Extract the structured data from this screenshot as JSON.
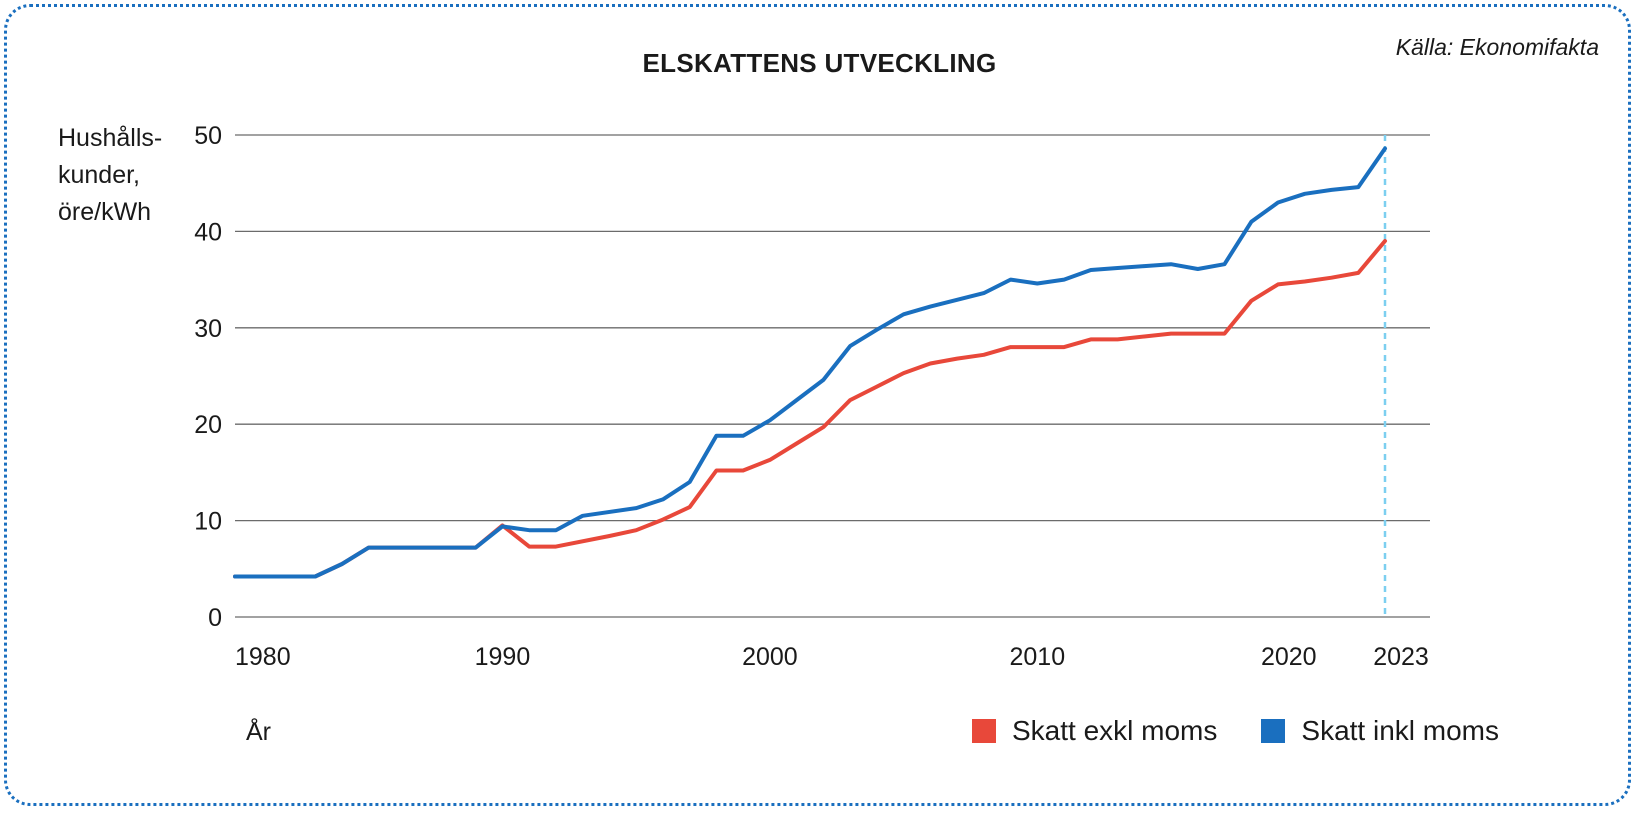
{
  "chart_data": {
    "type": "line",
    "title": "ELSKATTENS UTVECKLING",
    "source": "Källa: Ekonomifakta",
    "ylabel_lines": [
      "Hushålls-",
      "kunder,",
      "öre/kWh"
    ],
    "xlabel": "År",
    "ylim": [
      0,
      50
    ],
    "xlim": [
      1980,
      2023.5
    ],
    "yticks": [
      0,
      10,
      20,
      30,
      40,
      50
    ],
    "xticks": [
      1980,
      1990,
      2000,
      2010,
      2020,
      2023
    ],
    "grid": true,
    "legend_position": "bottom-right",
    "reference_line_x": 2023,
    "series": [
      {
        "name": "Skatt exkl moms",
        "color": "#e8483a",
        "x": [
          1980,
          1983,
          1984,
          1985,
          1988,
          1989,
          1990,
          1991,
          1992,
          1994,
          1995,
          1996,
          1997,
          1998,
          1999,
          2000,
          2001,
          2002,
          2003,
          2004,
          2005,
          2006,
          2007,
          2008,
          2009,
          2010,
          2011,
          2012,
          2013,
          2014,
          2015,
          2016,
          2017,
          2018,
          2019,
          2020,
          2021,
          2022,
          2023
        ],
        "y": [
          4.2,
          4.2,
          5.5,
          7.2,
          7.2,
          7.2,
          9.5,
          7.3,
          7.3,
          8.4,
          9.0,
          10.1,
          11.4,
          15.2,
          15.2,
          16.3,
          18.0,
          19.7,
          22.5,
          23.9,
          25.3,
          26.3,
          26.8,
          27.2,
          28.0,
          28.0,
          28.0,
          28.8,
          28.8,
          29.1,
          29.4,
          29.4,
          29.4,
          32.8,
          34.5,
          34.8,
          35.2,
          35.7,
          39.0
        ]
      },
      {
        "name": "Skatt inkl moms",
        "color": "#1a6fbf",
        "x": [
          1980,
          1983,
          1984,
          1985,
          1988,
          1989,
          1990,
          1991,
          1992,
          1993,
          1995,
          1996,
          1997,
          1998,
          1999,
          2000,
          2001,
          2002,
          2003,
          2004,
          2005,
          2006,
          2007,
          2008,
          2009,
          2010,
          2011,
          2012,
          2013,
          2014,
          2015,
          2016,
          2017,
          2018,
          2019,
          2020,
          2021,
          2022,
          2023
        ],
        "y": [
          4.2,
          4.2,
          5.5,
          7.2,
          7.2,
          7.2,
          9.4,
          9.0,
          9.0,
          10.5,
          11.3,
          12.2,
          14.0,
          18.8,
          18.8,
          20.4,
          22.5,
          24.6,
          28.1,
          29.8,
          31.4,
          32.2,
          32.9,
          33.6,
          35.0,
          34.6,
          35.0,
          36.0,
          36.2,
          36.4,
          36.6,
          36.1,
          36.6,
          41.0,
          43.0,
          43.9,
          44.3,
          44.6,
          48.6
        ]
      }
    ]
  }
}
